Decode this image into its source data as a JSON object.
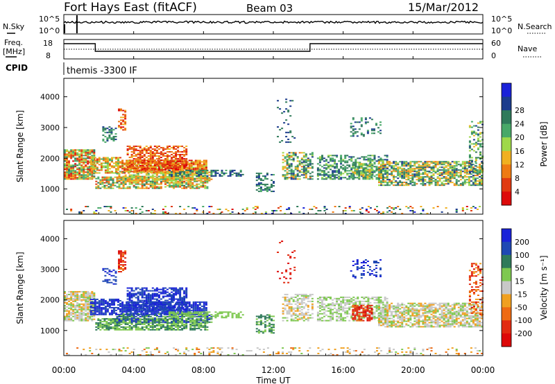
{
  "header": {
    "title": "Fort Hays East (fitACF)",
    "beam": "Beam 03",
    "date": "15/Mar/2012"
  },
  "noise_panel": {
    "left_label": "N.Sky",
    "right_label": "N.Search",
    "left_ticks": [
      "10^5",
      "10^0"
    ],
    "right_ticks": [
      "10^5",
      "10^0"
    ]
  },
  "freq_panel": {
    "left_label_line1": "Freq.",
    "left_label_line2": "[MHz]",
    "left_ticks": [
      "18",
      "8"
    ],
    "right_label": "Nave",
    "right_ticks": [
      "60",
      "0"
    ]
  },
  "cpid_panel": {
    "label": "CPID",
    "program": "themis -3300 IF"
  },
  "x_axis": {
    "label": "Time UT",
    "ticks": [
      "00:00",
      "04:00",
      "08:00",
      "12:00",
      "16:00",
      "20:00",
      "00:00"
    ]
  },
  "chart_data": [
    {
      "type": "heatmap",
      "panel": "power",
      "ylabel": "Slant Range [km]",
      "ylim": [
        180,
        4600
      ],
      "yticks": [
        1000,
        2000,
        3000,
        4000
      ],
      "xlim_hours": [
        0,
        24
      ],
      "colorbar": {
        "label": "Power [dB]",
        "ticks": [
          "4",
          "8",
          "12",
          "16",
          "20",
          "24",
          "28"
        ],
        "colors": [
          "#1a22d8",
          "#1c3c8c",
          "#2f7a5a",
          "#48a868",
          "#9fd84a",
          "#f0b020",
          "#ee7a12",
          "#e03a10",
          "#dd0a0a"
        ]
      }
    },
    {
      "type": "heatmap",
      "panel": "velocity",
      "ylabel": "Slant Range [km]",
      "ylim": [
        180,
        4600
      ],
      "yticks": [
        1000,
        2000,
        3000,
        4000
      ],
      "xlim_hours": [
        0,
        24
      ],
      "colorbar": {
        "label": "Velocity [m s⁻¹]",
        "ticks": [
          "200",
          "100",
          "50",
          "15",
          "-15",
          "-50",
          "-100",
          "-200"
        ],
        "colors": [
          "#1a22d8",
          "#1f48b4",
          "#2f7a5a",
          "#7ec850",
          "#c8c8c8",
          "#f0a020",
          "#ee6a12",
          "#e22a10",
          "#dd0808"
        ]
      }
    }
  ]
}
